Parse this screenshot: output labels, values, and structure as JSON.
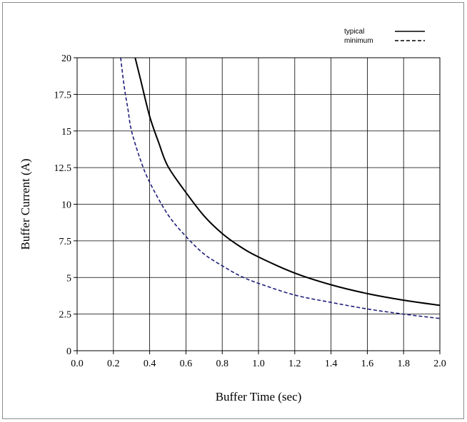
{
  "chart_data": {
    "type": "line",
    "xlabel": "Buffer Time (sec)",
    "ylabel": "Buffer  Current  (A)",
    "xlim": [
      0.0,
      2.0
    ],
    "ylim": [
      0,
      20
    ],
    "x_ticks": [
      "0.0",
      "0.2",
      "0.4",
      "0.6",
      "0.8",
      "1.0",
      "1.2",
      "1.4",
      "1.6",
      "1.8",
      "2.0"
    ],
    "y_ticks": [
      "0",
      "2.5",
      "5",
      "7.5",
      "10",
      "12.5",
      "15",
      "17.5",
      "20"
    ],
    "grid": true,
    "legend_position": "top-right",
    "series": [
      {
        "name": "typical",
        "style": "solid",
        "color": "#000000",
        "x": [
          0.32,
          0.35,
          0.4,
          0.45,
          0.5,
          0.6,
          0.7,
          0.8,
          0.9,
          1.0,
          1.2,
          1.4,
          1.6,
          1.8,
          2.0
        ],
        "y": [
          20.0,
          18.5,
          16.0,
          14.2,
          12.6,
          10.8,
          9.2,
          8.0,
          7.1,
          6.4,
          5.3,
          4.5,
          3.9,
          3.45,
          3.1
        ]
      },
      {
        "name": "minimum",
        "style": "dashed",
        "color": "#1f1f7a",
        "x": [
          0.24,
          0.26,
          0.28,
          0.3,
          0.35,
          0.4,
          0.5,
          0.6,
          0.7,
          0.8,
          0.9,
          1.0,
          1.2,
          1.4,
          1.6,
          1.8,
          2.0
        ],
        "y": [
          20.0,
          18.0,
          16.5,
          15.0,
          13.0,
          11.5,
          9.3,
          7.8,
          6.6,
          5.8,
          5.1,
          4.6,
          3.8,
          3.3,
          2.85,
          2.5,
          2.2
        ]
      }
    ]
  }
}
